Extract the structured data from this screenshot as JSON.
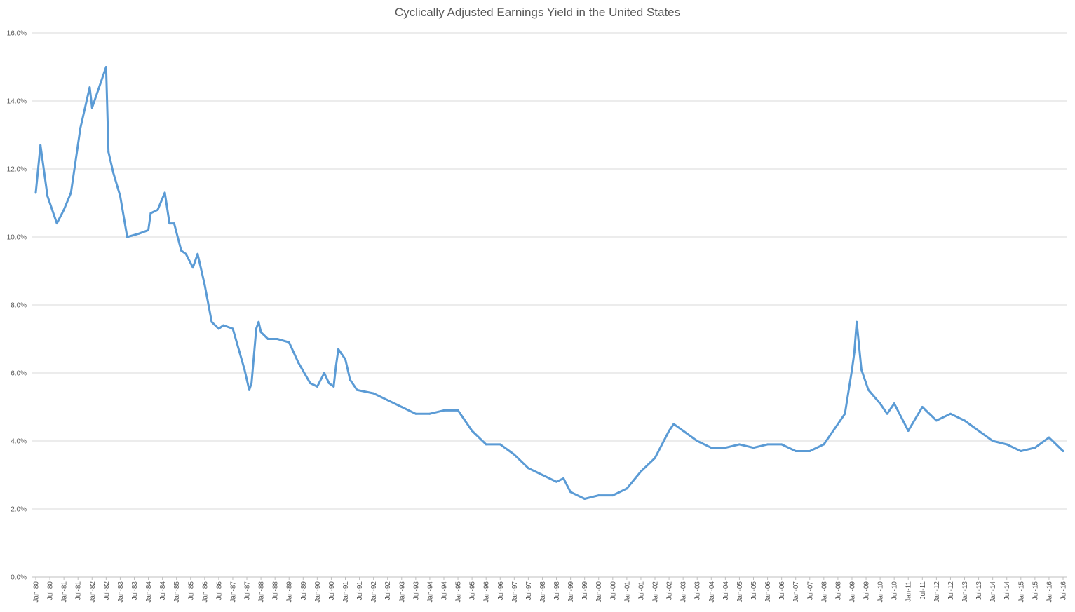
{
  "chart_data": {
    "type": "line",
    "title": "Cyclically Adjusted Earnings Yield in the United States",
    "xlabel": "",
    "ylabel": "",
    "ylim": [
      0,
      16
    ],
    "y_tick_labels": [
      "0.0%",
      "2.0%",
      "4.0%",
      "6.0%",
      "8.0%",
      "10.0%",
      "12.0%",
      "14.0%",
      "16.0%"
    ],
    "x_tick_labels": [
      "Jan-80",
      "Jul-80",
      "Jan-81",
      "Jul-81",
      "Jan-82",
      "Jul-82",
      "Jan-83",
      "Jul-83",
      "Jan-84",
      "Jul-84",
      "Jan-85",
      "Jul-85",
      "Jan-86",
      "Jul-86",
      "Jan-87",
      "Jul-87",
      "Jan-88",
      "Jul-88",
      "Jan-89",
      "Jul-89",
      "Jan-90",
      "Jul-90",
      "Jan-91",
      "Jul-91",
      "Jan-92",
      "Jul-92",
      "Jan-93",
      "Jul-93",
      "Jan-94",
      "Jul-94",
      "Jan-95",
      "Jul-95",
      "Jan-96",
      "Jul-96",
      "Jan-97",
      "Jul-97",
      "Jan-98",
      "Jul-98",
      "Jan-99",
      "Jul-99",
      "Jan-00",
      "Jul-00",
      "Jan-01",
      "Jul-01",
      "Jan-02",
      "Jul-02",
      "Jan-03",
      "Jul-03",
      "Jan-04",
      "Jul-04",
      "Jan-05",
      "Jul-05",
      "Jan-06",
      "Jul-06",
      "Jan-07",
      "Jul-07",
      "Jan-08",
      "Jul-08",
      "Jan-09",
      "Jul-09",
      "Jan-10",
      "Jul-10",
      "Jan-11",
      "Jul-11",
      "Jan-12",
      "Jul-12",
      "Jan-13",
      "Jul-13",
      "Jan-14",
      "Jul-14",
      "Jan-15",
      "Jul-15",
      "Jan-16",
      "Jul-16"
    ],
    "grid": true,
    "line_color": "#5B9BD5",
    "series": [
      {
        "x": [
          "Jan-80",
          "Mar-80",
          "Jun-80",
          "Oct-80",
          "Jan-81",
          "Apr-81",
          "Aug-81",
          "Dec-81",
          "Jan-82",
          "Jul-82",
          "Aug-82",
          "Oct-82",
          "Jan-83",
          "Apr-83",
          "Sep-83",
          "Jan-84",
          "Feb-84",
          "May-84",
          "Aug-84",
          "Oct-84",
          "Dec-84",
          "Mar-85",
          "May-85",
          "Aug-85",
          "Oct-85",
          "Jan-86",
          "Apr-86",
          "Jul-86",
          "Sep-86",
          "Jan-87",
          "Jun-87",
          "Aug-87",
          "Sep-87",
          "Nov-87",
          "Dec-87",
          "Jan-88",
          "Apr-88",
          "Aug-88",
          "Jan-89",
          "May-89",
          "Oct-89",
          "Jan-90",
          "Apr-90",
          "Jun-90",
          "Aug-90",
          "Sep-90",
          "Oct-90",
          "Jan-91",
          "Mar-91",
          "Jun-91",
          "Jan-92",
          "Jul-92",
          "Jan-93",
          "Jul-93",
          "Jan-94",
          "Jul-94",
          "Jan-95",
          "Jul-95",
          "Jan-96",
          "Jul-96",
          "Jan-97",
          "Jul-97",
          "Jan-98",
          "Jul-98",
          "Oct-98",
          "Jan-99",
          "Jul-99",
          "Jan-00",
          "Jul-00",
          "Jan-01",
          "Jul-01",
          "Jan-02",
          "Jul-02",
          "Sep-02",
          "Jan-03",
          "Jul-03",
          "Jan-04",
          "Jul-04",
          "Jan-05",
          "Jul-05",
          "Jan-06",
          "Jul-06",
          "Jan-07",
          "Jul-07",
          "Jan-08",
          "Jul-08",
          "Oct-08",
          "Jan-09",
          "Feb-09",
          "Mar-09",
          "May-09",
          "Aug-09",
          "Jan-10",
          "Apr-10",
          "Jul-10",
          "Jan-11",
          "Jul-11",
          "Jan-12",
          "Jul-12",
          "Jan-13",
          "Jul-13",
          "Jan-14",
          "Jul-14",
          "Jan-15",
          "Jul-15",
          "Jan-16",
          "Jul-16"
        ],
        "values": [
          11.3,
          12.7,
          11.2,
          10.4,
          10.8,
          11.3,
          13.2,
          14.4,
          13.8,
          15.0,
          12.5,
          11.9,
          11.2,
          10.0,
          10.1,
          10.2,
          10.7,
          10.8,
          11.3,
          10.4,
          10.4,
          9.6,
          9.5,
          9.1,
          9.5,
          8.6,
          7.5,
          7.3,
          7.4,
          7.3,
          6.1,
          5.5,
          5.7,
          7.3,
          7.5,
          7.2,
          7.0,
          7.0,
          6.9,
          6.3,
          5.7,
          5.6,
          6.0,
          5.7,
          5.6,
          6.2,
          6.7,
          6.4,
          5.8,
          5.5,
          5.4,
          5.2,
          5.0,
          4.8,
          4.8,
          4.9,
          4.9,
          4.3,
          3.9,
          3.9,
          3.6,
          3.2,
          3.0,
          2.8,
          2.9,
          2.5,
          2.3,
          2.4,
          2.4,
          2.6,
          3.1,
          3.5,
          4.3,
          4.5,
          4.3,
          4.0,
          3.8,
          3.8,
          3.9,
          3.8,
          3.9,
          3.9,
          3.7,
          3.7,
          3.9,
          4.5,
          4.8,
          6.1,
          6.6,
          7.5,
          6.1,
          5.5,
          5.1,
          4.8,
          5.1,
          4.3,
          5.0,
          4.6,
          4.8,
          4.6,
          4.3,
          4.0,
          3.9,
          3.7,
          3.8,
          4.1,
          3.7
        ]
      }
    ]
  }
}
